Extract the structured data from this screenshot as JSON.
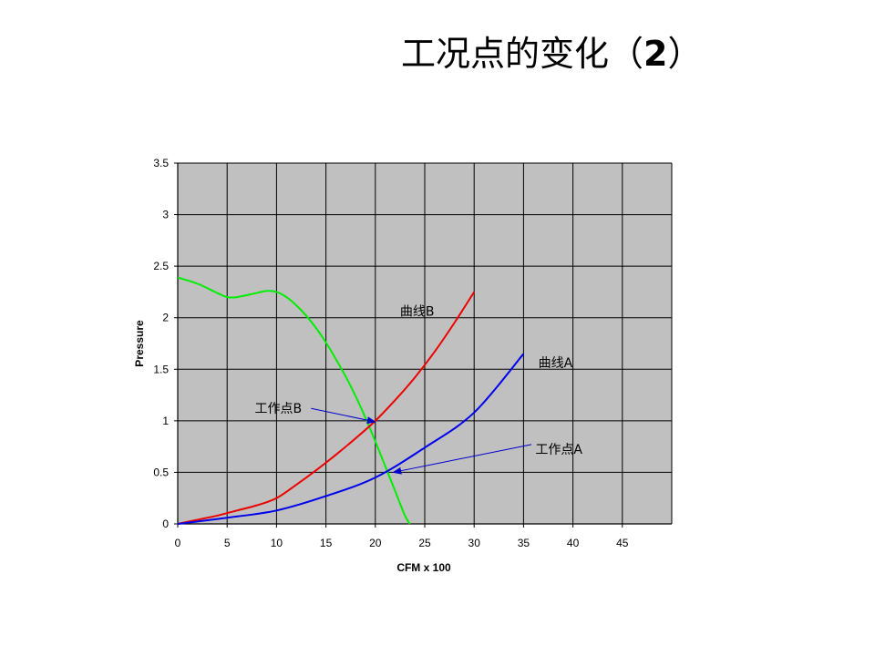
{
  "slide": {
    "title_main": "工况点的变化（",
    "title_num": "2",
    "title_close": "）"
  },
  "chart_data": {
    "type": "line",
    "xlabel": "CFM x 100",
    "ylabel": "Pressure",
    "xlim": [
      0,
      50
    ],
    "ylim": [
      0,
      3.5
    ],
    "xticks": [
      0,
      5,
      10,
      15,
      20,
      25,
      30,
      35,
      40,
      45
    ],
    "yticks": [
      0,
      0.5,
      1,
      1.5,
      2,
      2.5,
      3,
      3.5
    ],
    "grid": true,
    "plot_background": "#c0c0c0",
    "series": [
      {
        "color": "#00ee00",
        "x": [
          0,
          2,
          4,
          5,
          6,
          8,
          9,
          10,
          11,
          12,
          13,
          14,
          15,
          16,
          17,
          18,
          19,
          20,
          21,
          22,
          23,
          23.5
        ],
        "y": [
          2.39,
          2.33,
          2.24,
          2.2,
          2.2,
          2.24,
          2.26,
          2.25,
          2.2,
          2.12,
          2.02,
          1.9,
          1.76,
          1.6,
          1.43,
          1.24,
          1.03,
          0.8,
          0.56,
          0.32,
          0.08,
          0.0
        ]
      },
      {
        "name": "曲线B",
        "color": "#ee0000",
        "x": [
          0,
          2,
          4,
          6,
          8,
          10,
          12,
          14,
          16,
          18,
          20,
          22,
          24,
          26,
          28,
          30
        ],
        "y": [
          0,
          0.04,
          0.08,
          0.13,
          0.18,
          0.25,
          0.38,
          0.52,
          0.67,
          0.83,
          1.0,
          1.2,
          1.42,
          1.67,
          1.95,
          2.25
        ]
      },
      {
        "name": "曲线A",
        "color": "#0000ee",
        "x": [
          0,
          5,
          10,
          15,
          20,
          25,
          30,
          35
        ],
        "y": [
          0,
          0.06,
          0.13,
          0.27,
          0.45,
          0.74,
          1.08,
          1.65
        ]
      }
    ],
    "annotations": [
      {
        "text": "曲线B",
        "x": 22.5,
        "y": 2.02
      },
      {
        "text": "曲线A",
        "x": 36.5,
        "y": 1.52
      },
      {
        "text": "工作点B",
        "x": 7.8,
        "y": 1.08,
        "arrow_from": [
          13.5,
          1.12
        ],
        "arrow_to": [
          20,
          0.99
        ]
      },
      {
        "text": "工作点A",
        "x": 36.2,
        "y": 0.68,
        "arrow_from": [
          35.8,
          0.77
        ],
        "arrow_to": [
          21.8,
          0.5
        ]
      }
    ]
  }
}
